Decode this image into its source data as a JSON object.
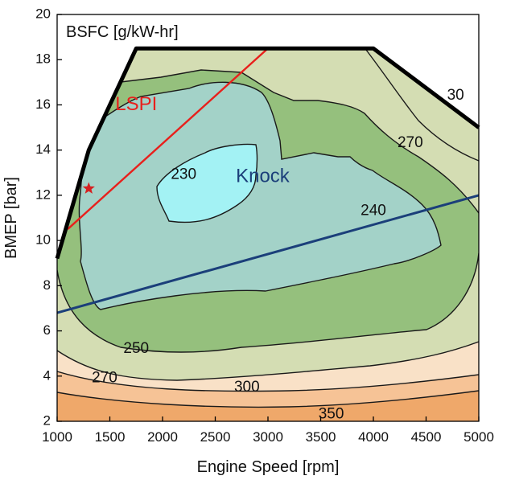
{
  "chart_data": {
    "type": "contour",
    "title": "BSFC [g/kW-hr]",
    "xlabel": "Engine Speed [rpm]",
    "ylabel": "BMEP [bar]",
    "xlim": [
      1000,
      5000
    ],
    "ylim": [
      2,
      20
    ],
    "xticks": [
      "1000",
      "1500",
      "2000",
      "2500",
      "3000",
      "3500",
      "4000",
      "4500",
      "5000"
    ],
    "yticks": [
      "2",
      "4",
      "6",
      "8",
      "10",
      "12",
      "14",
      "16",
      "18",
      "20"
    ],
    "grid": false,
    "colors": {
      "band_350_plus": "#efa86a",
      "band_300_350": "#f6c396",
      "band_270_300": "#f9e1c7",
      "band_250_270": "#d4ddb3",
      "band_240_250": "#95c07d",
      "band_230_240": "#a3d2c8",
      "band_below_230": "#a3f2f4",
      "contour_line": "#1a1a1a",
      "lspi_line": "#e8201c",
      "knock_line": "#1b3f7a",
      "max_torque_line": "#000000"
    },
    "max_torque_curve": {
      "x": [
        1000,
        1300,
        1750,
        4000,
        5000
      ],
      "y": [
        9.2,
        14.0,
        18.5,
        18.5,
        15.0
      ]
    },
    "contour_labels": [
      {
        "text": "230",
        "x": 2200,
        "y": 12.9
      },
      {
        "text": "240",
        "x": 4000,
        "y": 11.3
      },
      {
        "text": "250",
        "x": 1750,
        "y": 5.2
      },
      {
        "text": "270",
        "x": 1450,
        "y": 3.9
      },
      {
        "text": "270",
        "x": 4350,
        "y": 14.3
      },
      {
        "text": "300",
        "x": 2800,
        "y": 3.5
      },
      {
        "text": "350",
        "x": 3600,
        "y": 2.3
      },
      {
        "text": "30",
        "x": 4780,
        "y": 16.4
      }
    ],
    "annotations": [
      {
        "text": "LSPI",
        "x": 1750,
        "y": 16.0,
        "color": "#e8201c"
      },
      {
        "text": "Knock",
        "x": 2950,
        "y": 12.8,
        "color": "#1b3f7a"
      }
    ],
    "lines": [
      {
        "name": "LSPI",
        "x": [
          1100,
          3000
        ],
        "y": [
          10.5,
          18.5
        ],
        "color": "#e8201c"
      },
      {
        "name": "Knock",
        "x": [
          1000,
          5000
        ],
        "y": [
          6.8,
          12.0
        ],
        "color": "#1b3f7a"
      }
    ],
    "markers": [
      {
        "shape": "star",
        "x": 1300,
        "y": 12.3,
        "color": "#d62020"
      }
    ]
  }
}
